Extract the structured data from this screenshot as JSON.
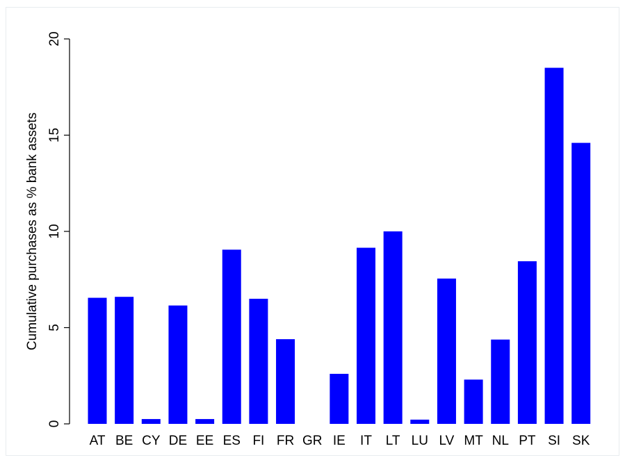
{
  "chart_data": {
    "type": "bar",
    "title": "",
    "xlabel": "",
    "ylabel": "Cumulative purchases as % bank assets",
    "categories": [
      "AT",
      "BE",
      "CY",
      "DE",
      "EE",
      "ES",
      "FI",
      "FR",
      "GR",
      "IE",
      "IT",
      "LT",
      "LU",
      "LV",
      "MT",
      "NL",
      "PT",
      "SI",
      "SK"
    ],
    "values": [
      6.55,
      6.6,
      0.25,
      6.15,
      0.25,
      9.05,
      6.5,
      4.4,
      0,
      2.6,
      9.15,
      10.0,
      0.22,
      7.55,
      2.3,
      4.38,
      8.45,
      18.5,
      14.6
    ],
    "ylim": [
      0,
      20
    ],
    "yticks": [
      0,
      5,
      10,
      15,
      20
    ],
    "bar_color": "#0000ff",
    "grid": false,
    "legend": "none"
  }
}
